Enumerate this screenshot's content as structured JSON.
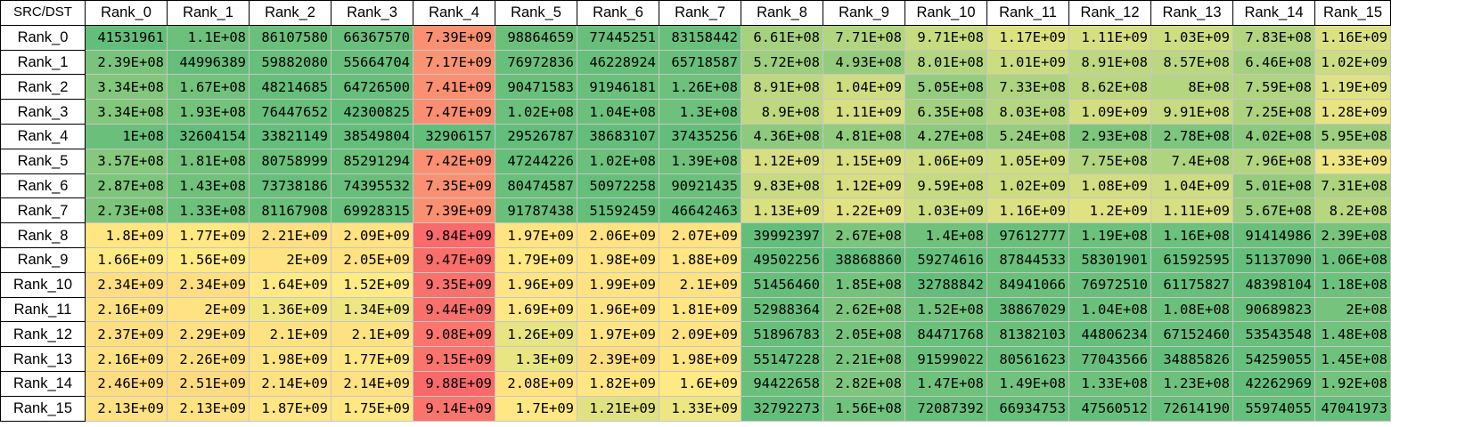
{
  "corner_label": "SRC/DST",
  "columns": [
    "Rank_0",
    "Rank_1",
    "Rank_2",
    "Rank_3",
    "Rank_4",
    "Rank_5",
    "Rank_6",
    "Rank_7",
    "Rank_8",
    "Rank_9",
    "Rank_10",
    "Rank_11",
    "Rank_12",
    "Rank_13",
    "Rank_14",
    "Rank_15"
  ],
  "rows": [
    {
      "label": "Rank_0",
      "cells": [
        "41531961",
        "1.1E+08",
        "86107580",
        "66367570",
        "7.39E+09",
        "98864659",
        "77445251",
        "83158442",
        "6.61E+08",
        "7.71E+08",
        "9.71E+08",
        "1.17E+09",
        "1.11E+09",
        "1.03E+09",
        "7.83E+08",
        "1.16E+09"
      ]
    },
    {
      "label": "Rank_1",
      "cells": [
        "2.39E+08",
        "44996389",
        "59882080",
        "55664704",
        "7.17E+09",
        "76972836",
        "46228924",
        "65718587",
        "5.72E+08",
        "4.93E+08",
        "8.01E+08",
        "1.01E+09",
        "8.91E+08",
        "8.57E+08",
        "6.46E+08",
        "1.02E+09"
      ]
    },
    {
      "label": "Rank_2",
      "cells": [
        "3.34E+08",
        "1.67E+08",
        "48214685",
        "64726500",
        "7.41E+09",
        "90471583",
        "91946181",
        "1.26E+08",
        "8.91E+08",
        "1.04E+09",
        "5.05E+08",
        "7.33E+08",
        "8.62E+08",
        "8E+08",
        "7.59E+08",
        "1.19E+09"
      ]
    },
    {
      "label": "Rank_3",
      "cells": [
        "3.34E+08",
        "1.93E+08",
        "76447652",
        "42300825",
        "7.47E+09",
        "1.02E+08",
        "1.04E+08",
        "1.3E+08",
        "8.9E+08",
        "1.11E+09",
        "6.35E+08",
        "8.03E+08",
        "1.09E+09",
        "9.91E+08",
        "7.25E+08",
        "1.28E+09"
      ]
    },
    {
      "label": "Rank_4",
      "cells": [
        "1E+08",
        "32604154",
        "33821149",
        "38549804",
        "32906157",
        "29526787",
        "38683107",
        "37435256",
        "4.36E+08",
        "4.81E+08",
        "4.27E+08",
        "5.24E+08",
        "2.93E+08",
        "2.78E+08",
        "4.02E+08",
        "5.95E+08"
      ]
    },
    {
      "label": "Rank_5",
      "cells": [
        "3.57E+08",
        "1.81E+08",
        "80758999",
        "85291294",
        "7.42E+09",
        "47244226",
        "1.02E+08",
        "1.39E+08",
        "1.12E+09",
        "1.15E+09",
        "1.06E+09",
        "1.05E+09",
        "7.75E+08",
        "7.4E+08",
        "7.96E+08",
        "1.33E+09"
      ]
    },
    {
      "label": "Rank_6",
      "cells": [
        "2.87E+08",
        "1.43E+08",
        "73738186",
        "74395532",
        "7.35E+09",
        "80474587",
        "50972258",
        "90921435",
        "9.83E+08",
        "1.12E+09",
        "9.59E+08",
        "1.02E+09",
        "1.08E+09",
        "1.04E+09",
        "5.01E+08",
        "7.31E+08"
      ]
    },
    {
      "label": "Rank_7",
      "cells": [
        "2.73E+08",
        "1.33E+08",
        "81167908",
        "69928315",
        "7.39E+09",
        "91787438",
        "51592459",
        "46642463",
        "1.13E+09",
        "1.22E+09",
        "1.03E+09",
        "1.16E+09",
        "1.2E+09",
        "1.11E+09",
        "5.67E+08",
        "8.2E+08"
      ]
    },
    {
      "label": "Rank_8",
      "cells": [
        "1.8E+09",
        "1.77E+09",
        "2.21E+09",
        "2.09E+09",
        "9.84E+09",
        "1.97E+09",
        "2.06E+09",
        "2.07E+09",
        "39992397",
        "2.67E+08",
        "1.4E+08",
        "97612777",
        "1.19E+08",
        "1.16E+08",
        "91414986",
        "2.39E+08"
      ]
    },
    {
      "label": "Rank_9",
      "cells": [
        "1.66E+09",
        "1.56E+09",
        "2E+09",
        "2.05E+09",
        "9.47E+09",
        "1.79E+09",
        "1.98E+09",
        "1.88E+09",
        "49502256",
        "38868860",
        "59274616",
        "87844533",
        "58301901",
        "61592595",
        "51137090",
        "1.06E+08"
      ]
    },
    {
      "label": "Rank_10",
      "cells": [
        "2.34E+09",
        "2.34E+09",
        "1.64E+09",
        "1.52E+09",
        "9.35E+09",
        "1.96E+09",
        "1.99E+09",
        "2.1E+09",
        "51456460",
        "1.85E+08",
        "32788842",
        "84941066",
        "76972510",
        "61175827",
        "48398104",
        "1.18E+08"
      ]
    },
    {
      "label": "Rank_11",
      "cells": [
        "2.16E+09",
        "2E+09",
        "1.36E+09",
        "1.34E+09",
        "9.44E+09",
        "1.69E+09",
        "1.96E+09",
        "1.81E+09",
        "52988364",
        "2.62E+08",
        "1.52E+08",
        "38867029",
        "1.04E+08",
        "1.08E+08",
        "90689823",
        "2E+08"
      ]
    },
    {
      "label": "Rank_12",
      "cells": [
        "2.37E+09",
        "2.29E+09",
        "2.1E+09",
        "2.1E+09",
        "9.08E+09",
        "1.26E+09",
        "1.97E+09",
        "2.09E+09",
        "51896783",
        "2.05E+08",
        "84471768",
        "81382103",
        "44806234",
        "67152460",
        "53543548",
        "1.48E+08"
      ]
    },
    {
      "label": "Rank_13",
      "cells": [
        "2.16E+09",
        "2.26E+09",
        "1.98E+09",
        "1.77E+09",
        "9.15E+09",
        "1.3E+09",
        "2.39E+09",
        "1.98E+09",
        "55147228",
        "2.21E+08",
        "91599022",
        "80561623",
        "77043566",
        "34885826",
        "54259055",
        "1.45E+08"
      ]
    },
    {
      "label": "Rank_14",
      "cells": [
        "2.46E+09",
        "2.51E+09",
        "2.14E+09",
        "2.14E+09",
        "9.88E+09",
        "2.08E+09",
        "1.82E+09",
        "1.6E+09",
        "94422658",
        "2.82E+08",
        "1.47E+08",
        "1.49E+08",
        "1.33E+08",
        "1.23E+08",
        "42262969",
        "1.92E+08"
      ]
    },
    {
      "label": "Rank_15",
      "cells": [
        "2.13E+09",
        "2.13E+09",
        "1.87E+09",
        "1.75E+09",
        "9.14E+09",
        "1.7E+09",
        "1.21E+09",
        "1.33E+09",
        "32792273",
        "1.56E+08",
        "72087392",
        "66934753",
        "47560512",
        "72614190",
        "55974055",
        "47041973"
      ]
    }
  ],
  "color_scale": {
    "low": "#63be7b",
    "mid": "#ffeb84",
    "high": "#f8696b",
    "midpoint_value": 1500000000
  }
}
